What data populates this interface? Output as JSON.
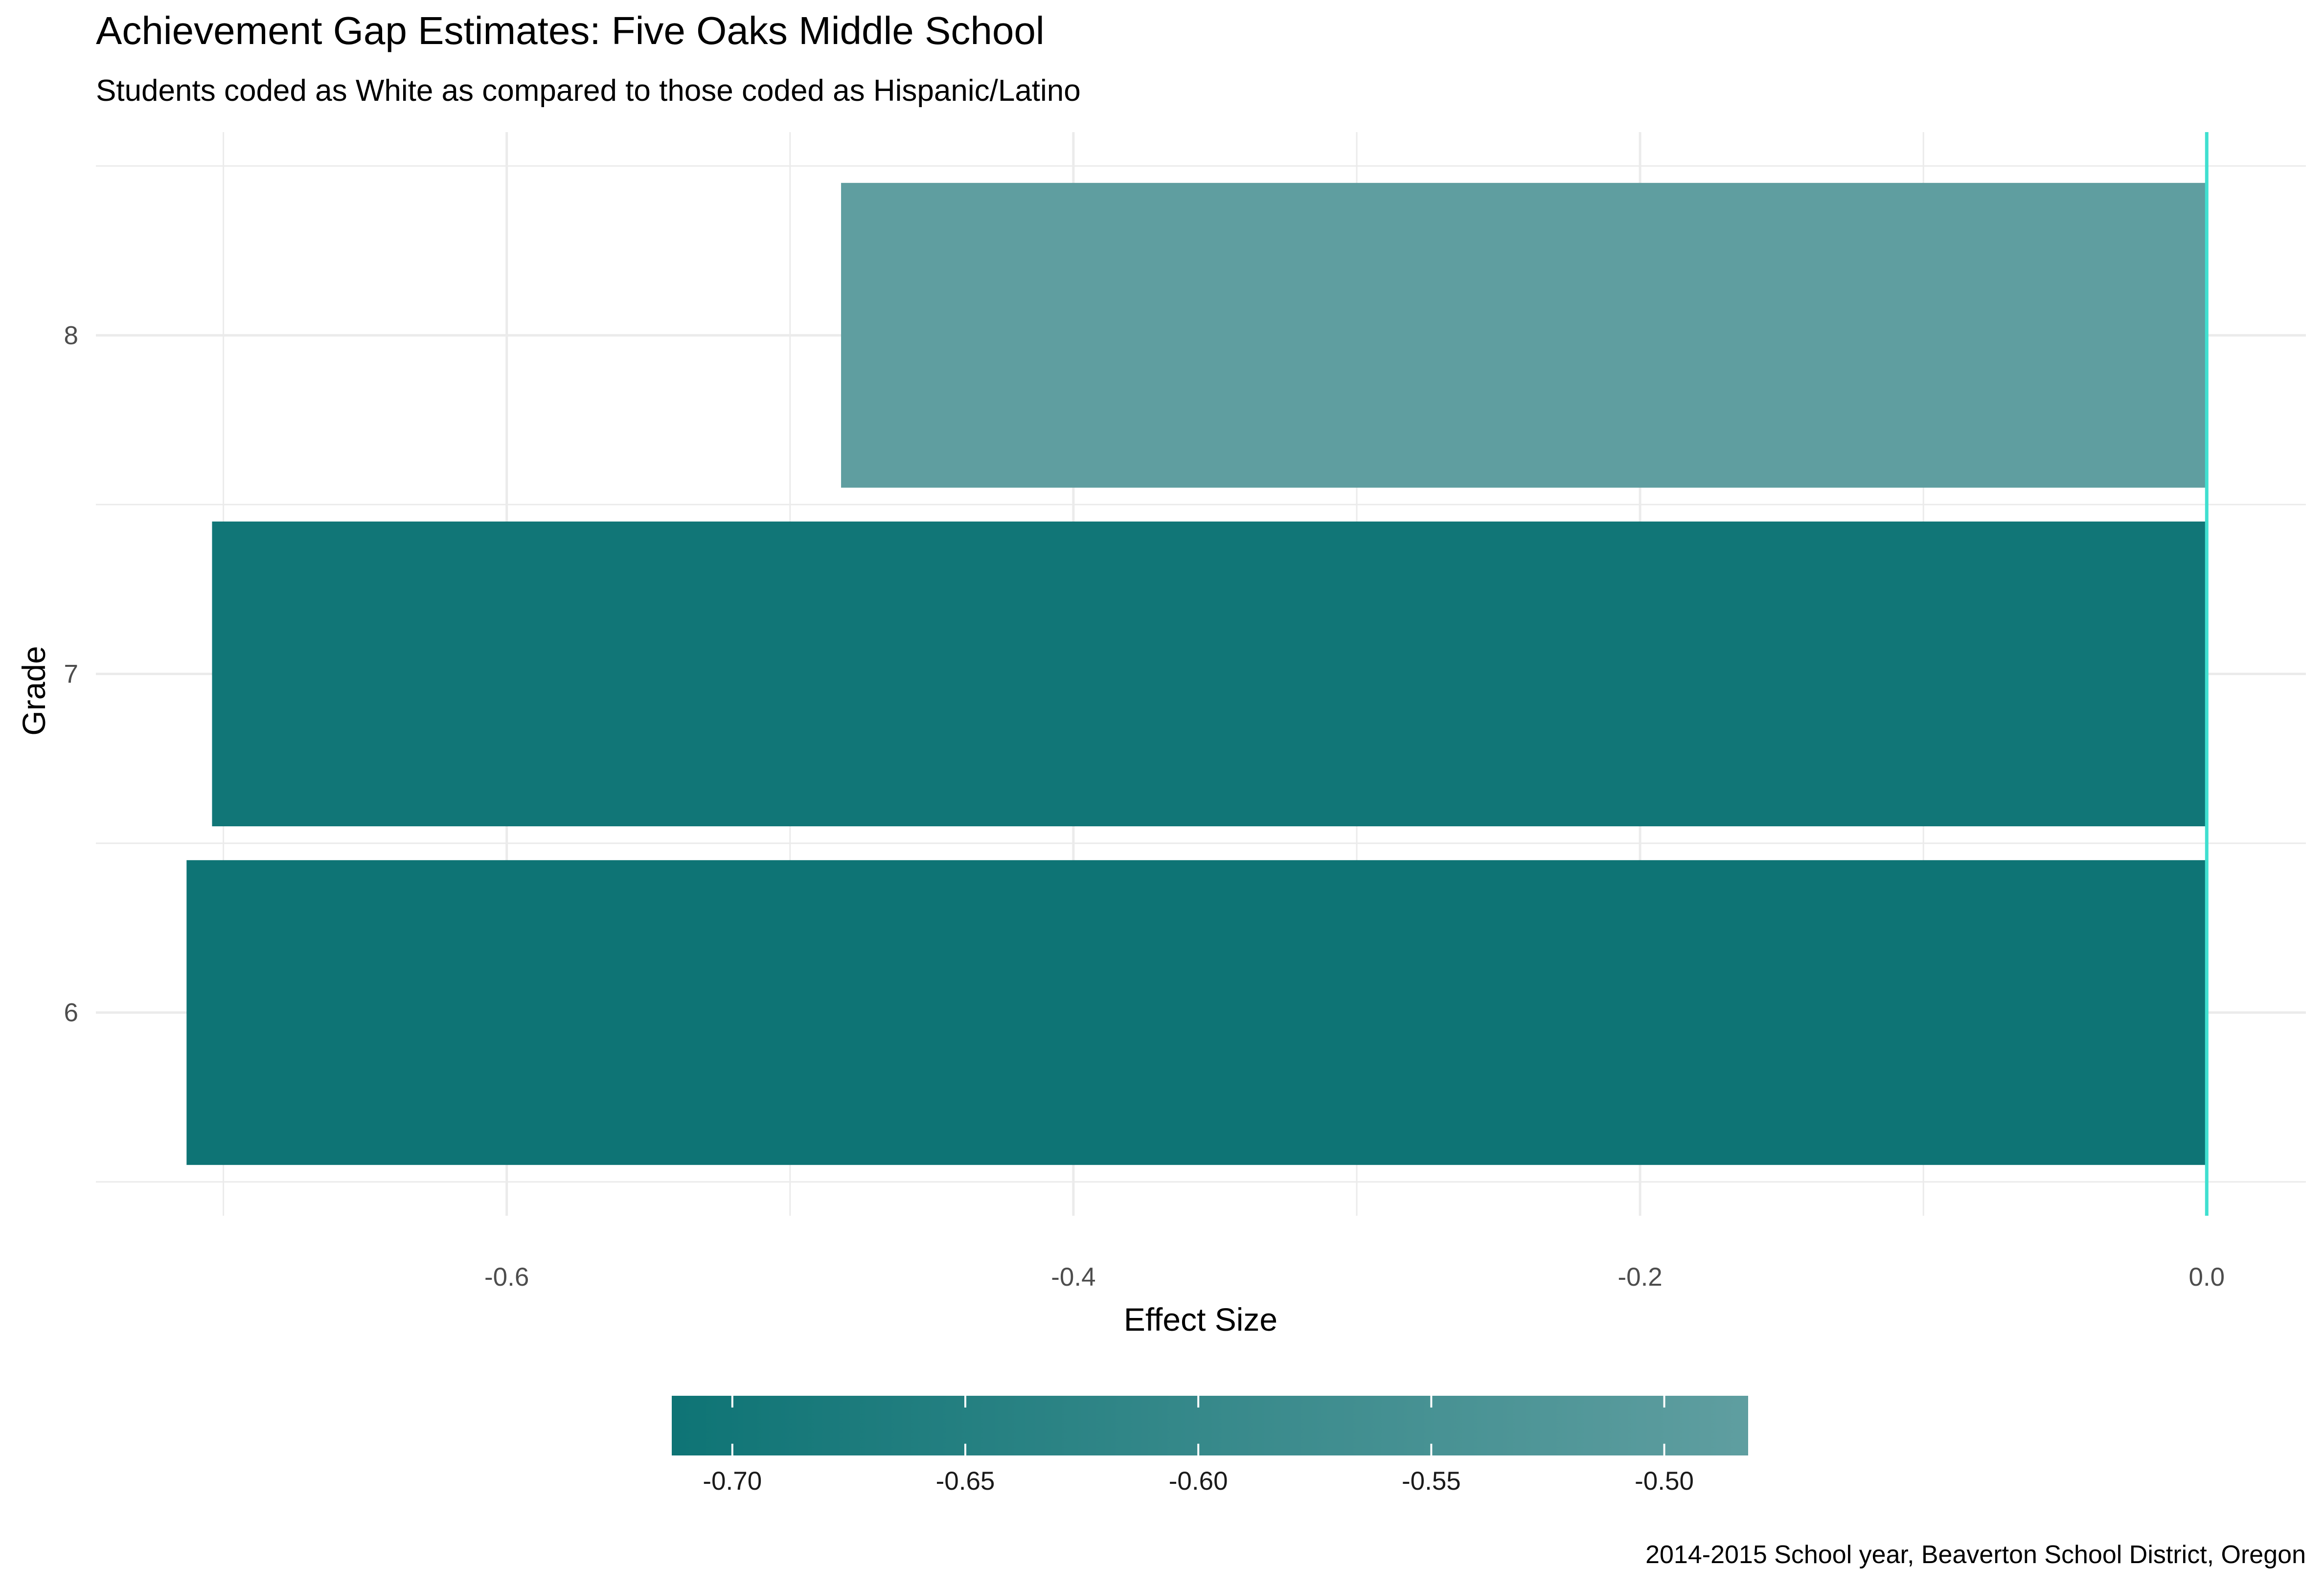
{
  "chart_data": {
    "type": "bar",
    "orientation": "horizontal",
    "title": "Achievement Gap Estimates: Five Oaks Middle School",
    "subtitle": "Students coded as White as compared to those coded as Hispanic/Latino",
    "caption": "2014-2015 School year, Beaverton School District, Oregon",
    "xlabel": "Effect Size",
    "ylabel": "Grade",
    "categories": [
      "6",
      "7",
      "8"
    ],
    "values": [
      -0.713,
      -0.704,
      -0.482
    ],
    "xlim": [
      -0.745,
      0.035
    ],
    "x_ticks": [
      -0.6,
      -0.4,
      -0.2,
      0.0
    ],
    "x_tick_labels": [
      "-0.6",
      "-0.4",
      "-0.2",
      "0.0"
    ],
    "reference_line": {
      "x": 0,
      "color": "#40e0d0"
    },
    "grid": true,
    "legend": {
      "position": "bottom",
      "type": "colorbar",
      "range": [
        -0.713,
        -0.482
      ],
      "low_color": "#0e7475",
      "high_color": "#5f9ea0",
      "ticks": [
        -0.7,
        -0.65,
        -0.6,
        -0.55,
        -0.5
      ],
      "tick_labels": [
        "-0.70",
        "-0.65",
        "-0.60",
        "-0.55",
        "-0.50"
      ]
    }
  }
}
